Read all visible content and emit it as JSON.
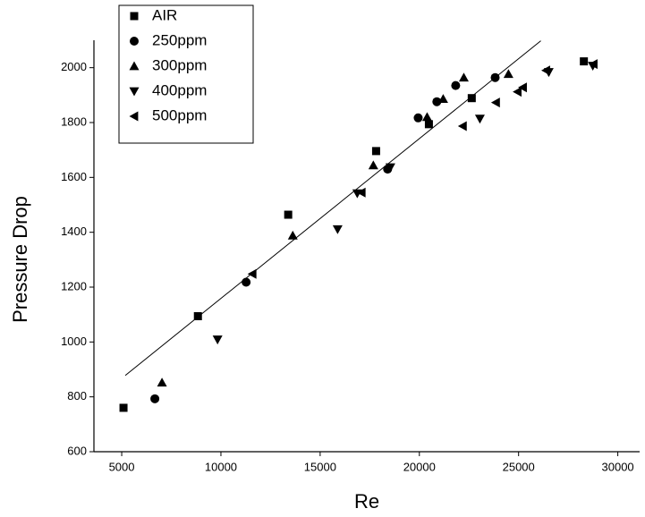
{
  "chart_data": {
    "type": "scatter",
    "x_label": "Re",
    "y_label": "Pressure Drop",
    "xlim": [
      3600,
      31100
    ],
    "ylim": [
      600,
      2100
    ],
    "xticks": [
      5000,
      10000,
      15000,
      20000,
      25000,
      30000
    ],
    "yticks": [
      600,
      800,
      1000,
      1200,
      1400,
      1600,
      1800,
      2000
    ],
    "legend": "upper left",
    "series": [
      {
        "name": "AIR",
        "color": "#000000",
        "marker": "square",
        "x": [
          5090,
          8840,
          13390,
          17820,
          20480,
          22640,
          28290
        ],
        "values": [
          760,
          1094,
          1464,
          1696,
          1794,
          1889,
          2023
        ]
      },
      {
        "name": "250ppm",
        "color": "#000000",
        "marker": "circle",
        "x": [
          6670,
          11270,
          18400,
          19940,
          20880,
          21830,
          23820
        ],
        "values": [
          793,
          1218,
          1630,
          1817,
          1876,
          1935,
          1964
        ]
      },
      {
        "name": "300ppm",
        "color": "#000000",
        "marker": "triangle-up",
        "x": [
          7030,
          13620,
          17680,
          20390,
          21200,
          22240,
          24490
        ],
        "values": [
          852,
          1388,
          1644,
          1820,
          1886,
          1964,
          1977
        ]
      },
      {
        "name": "400ppm",
        "color": "#000000",
        "marker": "triangle-down",
        "x": [
          9830,
          15880,
          16870,
          18540,
          23050,
          26520,
          28740
        ],
        "values": [
          1009,
          1411,
          1542,
          1637,
          1814,
          1984,
          2007
        ]
      },
      {
        "name": "500ppm",
        "color": "#000000",
        "marker": "triangle-left",
        "x": [
          11590,
          17090,
          22190,
          23860,
          24950,
          25220,
          26390,
          28780
        ],
        "values": [
          1248,
          1545,
          1787,
          1873,
          1912,
          1928,
          1990,
          2013
        ]
      }
    ],
    "fit": {
      "color": "#000000",
      "x": [
        5180,
        26120
      ],
      "values": [
        878,
        2098
      ]
    }
  }
}
